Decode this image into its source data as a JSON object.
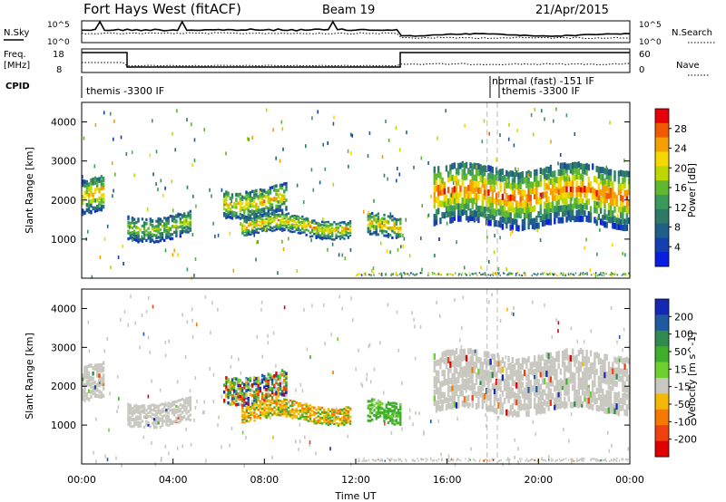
{
  "header": {
    "radar": "Fort Hays West (fitACF)",
    "beam": "Beam 19",
    "date": "21/Apr/2015"
  },
  "noise_panel": {
    "left_label": "N.Sky",
    "right_label": "N.Search",
    "left_ticks": [
      "10^5",
      "10^0"
    ],
    "right_ticks": [
      "10^5",
      "10^0"
    ]
  },
  "freq_panel": {
    "left_label_1": "Freq.",
    "left_label_2": "[MHz]",
    "right_label": "Nave",
    "left_ticks": [
      "18",
      "8"
    ],
    "right_ticks": [
      "60",
      "0"
    ]
  },
  "cpid_panel": {
    "label": "CPID",
    "modes": [
      {
        "text": "themis -3300 IF"
      },
      {
        "text": "normal (fast) -151 IF"
      },
      {
        "text": "themis -3300 IF"
      }
    ]
  },
  "chart_data": [
    {
      "type": "heatmap",
      "quantity": "Power",
      "ylabel": "Slant Range [km]",
      "ylim": [
        0,
        4500
      ],
      "y_ticks": [
        "4000",
        "3000",
        "2000",
        "1000"
      ],
      "colorbar": {
        "label": "Power [dB]",
        "ticks": [
          "28",
          "24",
          "20",
          "16",
          "12",
          "8",
          "4"
        ],
        "colors": [
          "#e8000a",
          "#f05a00",
          "#f5a000",
          "#f5d800",
          "#bcd800",
          "#5fb82e",
          "#3a9a5a",
          "#2e7a66",
          "#1f5f8a",
          "#1440b0",
          "#0a1ee0"
        ]
      },
      "echo_bands": [
        {
          "t": [
            0.0,
            1.0
          ],
          "r": [
            1700,
            2600
          ],
          "level": "mixed"
        },
        {
          "t": [
            2.0,
            4.8
          ],
          "r": [
            1100,
            1700
          ],
          "level": "mid"
        },
        {
          "t": [
            6.2,
            9.0
          ],
          "r": [
            1700,
            2400
          ],
          "level": "mixed"
        },
        {
          "t": [
            7.0,
            11.8
          ],
          "r": [
            1150,
            1600
          ],
          "level": "mixed"
        },
        {
          "t": [
            12.5,
            14.0
          ],
          "r": [
            1050,
            1600
          ],
          "level": "mixed"
        },
        {
          "t": [
            15.4,
            24.0
          ],
          "r": [
            1500,
            3000
          ],
          "level": "high"
        }
      ]
    },
    {
      "type": "heatmap",
      "quantity": "Velocity",
      "xlabel": "Time UT",
      "ylabel": "Slant Range [km]",
      "ylim": [
        0,
        4500
      ],
      "y_ticks": [
        "4000",
        "3000",
        "2000",
        "1000"
      ],
      "x_ticks": [
        "00:00",
        "04:00",
        "08:00",
        "12:00",
        "16:00",
        "20:00",
        "00:00"
      ],
      "colorbar": {
        "label": "Velocity [m s^-1]",
        "ticks": [
          "200",
          "100",
          "50",
          "15",
          "-15",
          "-50",
          "-100",
          "-200"
        ],
        "colors": [
          "#1428b4",
          "#1f5aa0",
          "#2e8a4e",
          "#3fae2a",
          "#6ed02e",
          "#c8c8c0",
          "#f5b800",
          "#f57800",
          "#f04010",
          "#e00000"
        ]
      },
      "echo_bands": [
        {
          "t": [
            0.0,
            1.0
          ],
          "r": [
            1700,
            2600
          ],
          "v": "grey"
        },
        {
          "t": [
            2.0,
            4.8
          ],
          "r": [
            1100,
            1700
          ],
          "v": "grey"
        },
        {
          "t": [
            6.2,
            9.0
          ],
          "r": [
            1700,
            2400
          ],
          "v": "mixed"
        },
        {
          "t": [
            7.0,
            11.8
          ],
          "r": [
            1150,
            1600
          ],
          "v": "orange/green"
        },
        {
          "t": [
            12.5,
            14.0
          ],
          "r": [
            1050,
            1600
          ],
          "v": "green"
        },
        {
          "t": [
            15.4,
            24.0
          ],
          "r": [
            1500,
            3000
          ],
          "v": "grey"
        }
      ]
    }
  ]
}
